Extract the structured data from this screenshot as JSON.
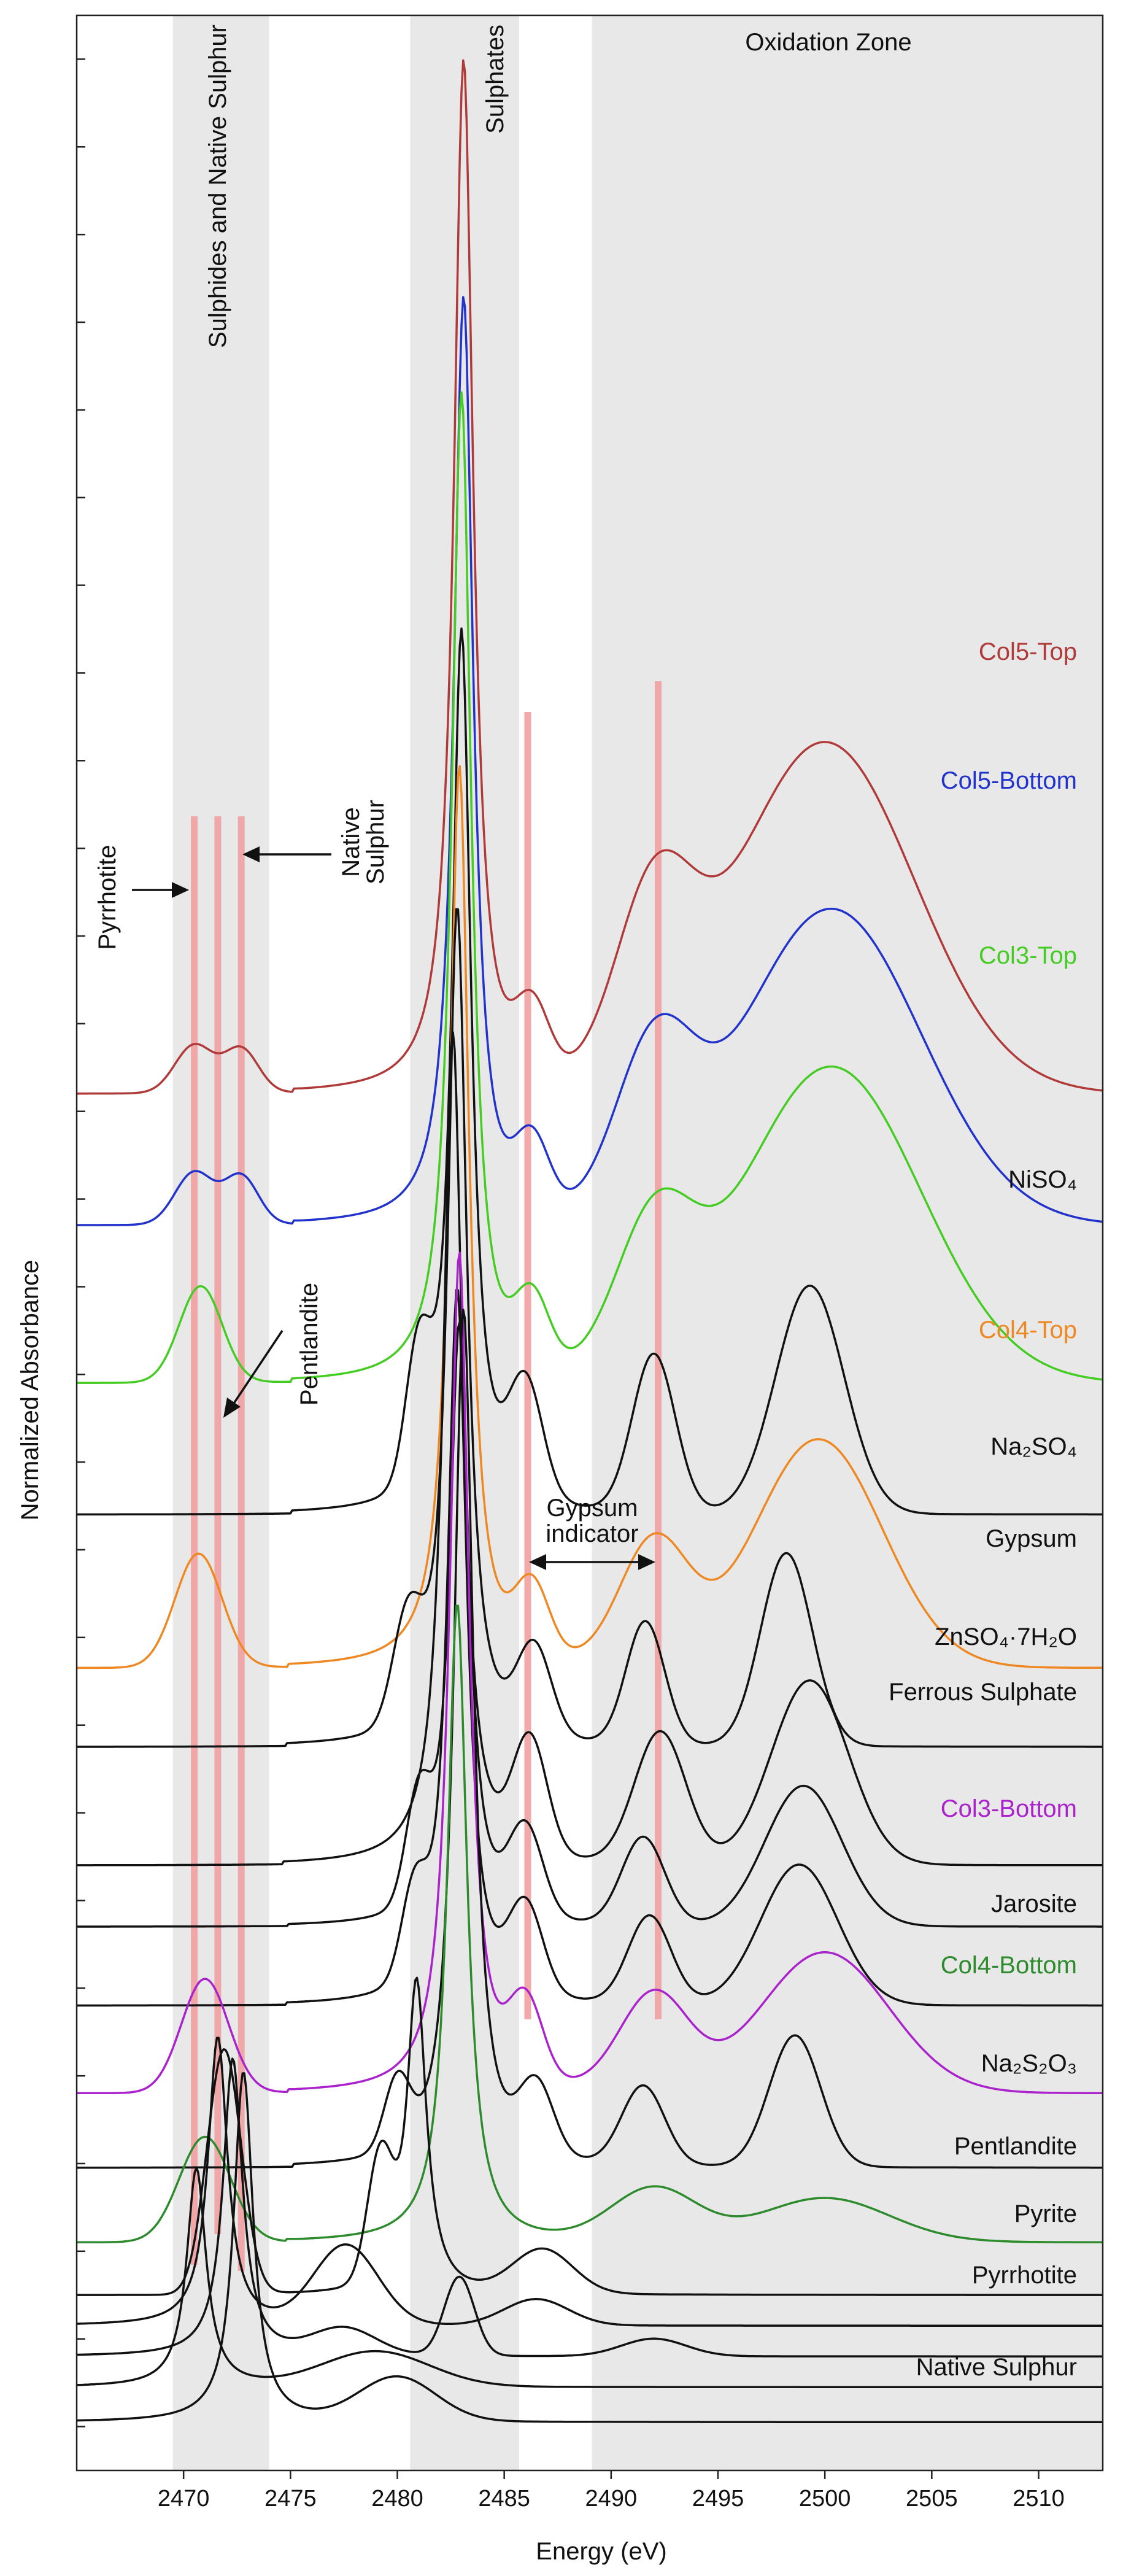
{
  "chart_data": {
    "type": "line",
    "title": "",
    "xlabel": "Energy     (eV)",
    "ylabel": "Normalized Absorbance",
    "xlim": [
      2465,
      2513
    ],
    "x_ticks": [
      2470,
      2475,
      2480,
      2485,
      2490,
      2495,
      2500,
      2505,
      2510
    ],
    "grid": false,
    "regions": [
      {
        "name": "Sulphides and Native Sulphur",
        "x_from": 2469.5,
        "x_to": 2474.0
      },
      {
        "name": "Sulphates",
        "x_from": 2480.6,
        "x_to": 2485.7
      },
      {
        "name": "Oxidation Zone",
        "x_from": 2489.1,
        "x_to": 2513.0
      }
    ],
    "marker_lines_ev": [
      2470.5,
      2471.6,
      2472.7,
      2486.1,
      2492.2
    ],
    "annotations": {
      "pyrrhotite": "Pyrrhotite",
      "native_line1": "Native",
      "native_line2": "Sulphur",
      "pentlandite": "Pentlandite",
      "gypsum_line1": "Gypsum",
      "gypsum_line2": "indicator"
    },
    "series": [
      {
        "name": "Col5-Top",
        "color": "#b03a3a",
        "baseline": 15.2,
        "peak_height": 11.8,
        "peak_ev": 2483.1,
        "features": [
          [
            2470.5,
            0.55,
            0.9
          ],
          [
            2472.7,
            0.5,
            0.8
          ],
          [
            2486.3,
            0.8,
            0.8
          ],
          [
            2492.0,
            2.0,
            1.8
          ],
          [
            2500.0,
            4.0,
            4.2
          ]
        ]
      },
      {
        "name": "Col5-Bottom",
        "color": "#2233cc",
        "baseline": 13.7,
        "peak_height": 10.6,
        "peak_ev": 2483.1,
        "features": [
          [
            2470.5,
            0.6,
            0.9
          ],
          [
            2472.7,
            0.55,
            0.8
          ],
          [
            2486.3,
            0.8,
            0.8
          ],
          [
            2492.0,
            1.8,
            1.8
          ],
          [
            2500.3,
            3.6,
            4.2
          ]
        ]
      },
      {
        "name": "Col3-Top",
        "color": "#44cc22",
        "baseline": 11.9,
        "peak_height": 11.3,
        "peak_ev": 2483.0,
        "features": [
          [
            2470.8,
            1.1,
            1.0
          ],
          [
            2486.3,
            0.8,
            0.8
          ],
          [
            2492.0,
            1.6,
            1.8
          ],
          [
            2500.3,
            3.6,
            4.2
          ]
        ]
      },
      {
        "name": "NiSO₄",
        "color": "#111111",
        "baseline": 10.4,
        "peak_height": 10.1,
        "peak_ev": 2483.0,
        "features": [
          [
            2481.0,
            1.5,
            0.6
          ],
          [
            2486.0,
            1.3,
            0.8
          ],
          [
            2492.0,
            1.8,
            1.0
          ],
          [
            2499.3,
            2.6,
            1.6
          ]
        ]
      },
      {
        "name": "Col4-Top",
        "color": "#ee8822",
        "baseline": 8.65,
        "peak_height": 10.3,
        "peak_ev": 2482.9,
        "features": [
          [
            2470.7,
            1.3,
            1.1
          ],
          [
            2486.3,
            0.8,
            0.8
          ],
          [
            2492.0,
            1.4,
            1.6
          ],
          [
            2499.7,
            2.6,
            3.0
          ]
        ]
      },
      {
        "name": "Na₂SO₄",
        "color": "#111111",
        "baseline": 7.75,
        "peak_height": 9.6,
        "peak_ev": 2482.8,
        "features": [
          [
            2480.5,
            1.2,
            0.7
          ],
          [
            2486.4,
            1.0,
            0.8
          ],
          [
            2491.6,
            1.4,
            0.9
          ],
          [
            2498.2,
            2.2,
            1.2
          ]
        ]
      },
      {
        "name": "Gypsum",
        "color": "#111111",
        "baseline": 6.4,
        "peak_height": 9.5,
        "peak_ev": 2482.6,
        "features": [
          [
            2486.2,
            1.3,
            0.8
          ],
          [
            2492.3,
            1.5,
            1.2
          ],
          [
            2499.3,
            2.1,
            1.8
          ]
        ]
      },
      {
        "name": "ZnSO₄·7H₂O",
        "color": "#111111",
        "baseline": 5.7,
        "peak_height": 6.9,
        "peak_ev": 2482.9,
        "features": [
          [
            2481.0,
            1.2,
            0.6
          ],
          [
            2486.0,
            1.0,
            0.8
          ],
          [
            2491.5,
            1.0,
            1.0
          ],
          [
            2499.0,
            1.6,
            1.8
          ]
        ]
      },
      {
        "name": "Ferrous Sulphate",
        "color": "#111111",
        "baseline": 4.8,
        "peak_height": 8.2,
        "peak_ev": 2482.8,
        "features": [
          [
            2480.8,
            1.0,
            0.6
          ],
          [
            2486.0,
            1.0,
            0.8
          ],
          [
            2491.8,
            1.0,
            1.0
          ],
          [
            2498.8,
            1.6,
            1.8
          ]
        ]
      },
      {
        "name": "Col3-Bottom",
        "color": "#aa22cc",
        "baseline": 3.8,
        "peak_height": 9.6,
        "peak_ev": 2482.9,
        "features": [
          [
            2471.0,
            1.3,
            1.1
          ],
          [
            2486.0,
            0.9,
            0.8
          ],
          [
            2492.0,
            1.1,
            1.6
          ],
          [
            2500.0,
            1.6,
            3.0
          ]
        ]
      },
      {
        "name": "Jarosite",
        "color": "#111111",
        "baseline": 2.95,
        "peak_height": 9.8,
        "peak_ev": 2483.1,
        "features": [
          [
            2480.0,
            0.8,
            0.6
          ],
          [
            2486.5,
            0.8,
            0.8
          ],
          [
            2491.5,
            0.9,
            1.0
          ],
          [
            2498.6,
            1.5,
            1.2
          ]
        ]
      },
      {
        "name": "Col4-Bottom",
        "color": "#2d8a2d",
        "baseline": 2.1,
        "peak_height": 7.3,
        "peak_ev": 2482.8,
        "features": [
          [
            2471.0,
            1.2,
            1.2
          ],
          [
            2492.0,
            0.6,
            2.0
          ],
          [
            2500.0,
            0.5,
            3.0
          ]
        ]
      },
      {
        "name": "Na₂S₂O₃",
        "color": "#111111",
        "baseline": 1.5,
        "peak_height": 3.6,
        "peak_ev": 2480.9,
        "features": [
          [
            2471.9,
            2.8,
            0.8
          ],
          [
            2479.2,
            1.4,
            0.6
          ],
          [
            2486.8,
            0.5,
            1.4
          ]
        ]
      },
      {
        "name": "Pentlandite",
        "color": "#111111",
        "baseline": 1.15,
        "peak_height": 3.3,
        "peak_ev": 2471.6,
        "features": [
          [
            2477.6,
            0.9,
            1.5
          ],
          [
            2486.5,
            0.3,
            1.5
          ]
        ]
      },
      {
        "name": "Pyrite",
        "color": "#111111",
        "baseline": 0.8,
        "peak_height": 3.4,
        "peak_ev": 2472.3,
        "features": [
          [
            2477.5,
            0.3,
            1.5
          ],
          [
            2482.9,
            0.9,
            0.7
          ],
          [
            2492.0,
            0.2,
            1.5
          ]
        ]
      },
      {
        "name": "Pyrrhotite",
        "color": "#111111",
        "baseline": 0.45,
        "peak_height": 2.5,
        "peak_ev": 2470.6,
        "features": [
          [
            2479.0,
            0.4,
            2.5
          ]
        ]
      },
      {
        "name": "Native Sulphur",
        "color": "#111111",
        "baseline": 0.05,
        "peak_height": 4.0,
        "peak_ev": 2472.8,
        "features": [
          [
            2480.0,
            0.5,
            1.8
          ]
        ]
      }
    ]
  }
}
